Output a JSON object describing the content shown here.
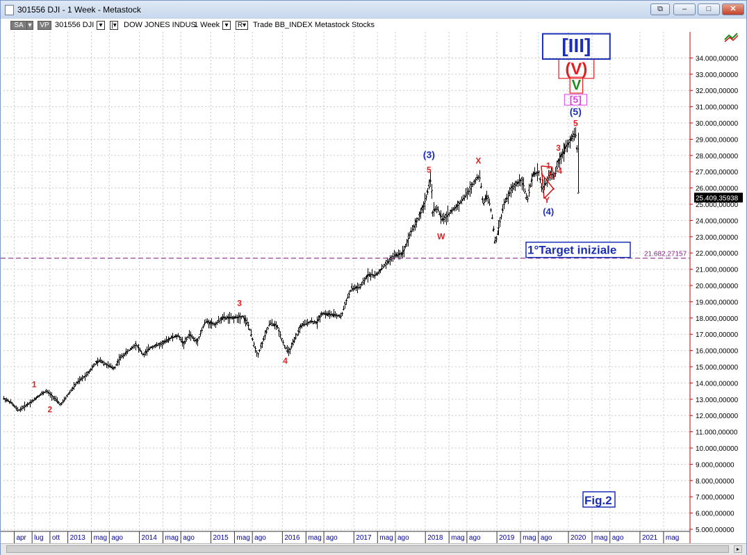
{
  "window": {
    "title": "301556 DJI - 1 Week - Metastock",
    "restore_glyph": "⧉",
    "minimize_glyph": "–",
    "maximize_glyph": "□",
    "close_glyph": "✕"
  },
  "toolbar": {
    "chip_sa": "SA",
    "chip_vp": "VP",
    "symbol": "301556 DJI",
    "name": "DOW JONES INDUS",
    "period": "1 Week",
    "rest": "Trade  BB_INDEX  Metastock  Stocks",
    "chip_r": "R"
  },
  "chart_data": {
    "type": "bar",
    "subtype": "weekly OHLC price bars",
    "y_range": [
      5000,
      35600
    ],
    "y_ticks": [
      "34.000,00000",
      "33.000,00000",
      "32.000,00000",
      "31.000,00000",
      "30.000,00000",
      "29.000,00000",
      "28.000,00000",
      "27.000,00000",
      "26.000,00000",
      "25.000,00000",
      "24.000,00000",
      "23.000,00000",
      "22.000,00000",
      "21.000,00000",
      "20.000,00000",
      "19.000,00000",
      "18.000,00000",
      "17.000,00000",
      "16.000,00000",
      "15.000,00000",
      "14.000,00000",
      "13.000,00000",
      "12.000,00000",
      "11.000,00000",
      "10.000,00000",
      "9.000,00000",
      "8.000,00000",
      "7.000,00000",
      "6.000,00000",
      "5.000,00000"
    ],
    "y_tick_values": [
      34000,
      33000,
      32000,
      31000,
      30000,
      29000,
      28000,
      27000,
      26000,
      25000,
      24000,
      23000,
      22000,
      21000,
      20000,
      19000,
      18000,
      17000,
      16000,
      15000,
      14000,
      13000,
      12000,
      11000,
      10000,
      9000,
      8000,
      7000,
      6000,
      5000
    ],
    "x_labels": [
      {
        "t": 2012.25,
        "text": "apr"
      },
      {
        "t": 2012.5,
        "text": "lug"
      },
      {
        "t": 2012.75,
        "text": "ott"
      },
      {
        "t": 2013.0,
        "text": "2013"
      },
      {
        "t": 2013.33,
        "text": "mag"
      },
      {
        "t": 2013.58,
        "text": "ago"
      },
      {
        "t": 2014.0,
        "text": "2014"
      },
      {
        "t": 2014.33,
        "text": "mag"
      },
      {
        "t": 2014.58,
        "text": "ago"
      },
      {
        "t": 2015.0,
        "text": "2015"
      },
      {
        "t": 2015.33,
        "text": "mag"
      },
      {
        "t": 2015.58,
        "text": "ago"
      },
      {
        "t": 2016.0,
        "text": "2016"
      },
      {
        "t": 2016.33,
        "text": "mag"
      },
      {
        "t": 2016.58,
        "text": "ago"
      },
      {
        "t": 2017.0,
        "text": "2017"
      },
      {
        "t": 2017.33,
        "text": "mag"
      },
      {
        "t": 2017.58,
        "text": "ago"
      },
      {
        "t": 2018.0,
        "text": "2018"
      },
      {
        "t": 2018.33,
        "text": "mag"
      },
      {
        "t": 2018.58,
        "text": "ago"
      },
      {
        "t": 2019.0,
        "text": "2019"
      },
      {
        "t": 2019.33,
        "text": "mag"
      },
      {
        "t": 2019.58,
        "text": "ago"
      },
      {
        "t": 2020.0,
        "text": "2020"
      },
      {
        "t": 2020.33,
        "text": "mag"
      },
      {
        "t": 2020.58,
        "text": "ago"
      },
      {
        "t": 2021.0,
        "text": "2021"
      },
      {
        "t": 2021.33,
        "text": "mag"
      }
    ],
    "x_range": [
      2012.1,
      2021.7
    ],
    "price_path": [
      [
        2012.1,
        13050
      ],
      [
        2012.2,
        12800
      ],
      [
        2012.3,
        12300
      ],
      [
        2012.4,
        12600
      ],
      [
        2012.5,
        12900
      ],
      [
        2012.62,
        13300
      ],
      [
        2012.7,
        13500
      ],
      [
        2012.78,
        13200
      ],
      [
        2012.9,
        12650
      ],
      [
        2013.0,
        13300
      ],
      [
        2013.12,
        14000
      ],
      [
        2013.25,
        14500
      ],
      [
        2013.38,
        15200
      ],
      [
        2013.45,
        15400
      ],
      [
        2013.55,
        15100
      ],
      [
        2013.65,
        14900
      ],
      [
        2013.72,
        15500
      ],
      [
        2013.85,
        16000
      ],
      [
        2013.95,
        16400
      ],
      [
        2014.05,
        15700
      ],
      [
        2014.15,
        16200
      ],
      [
        2014.3,
        16400
      ],
      [
        2014.45,
        16800
      ],
      [
        2014.55,
        16900
      ],
      [
        2014.62,
        16400
      ],
      [
        2014.7,
        17000
      ],
      [
        2014.8,
        16500
      ],
      [
        2014.92,
        17800
      ],
      [
        2015.05,
        17600
      ],
      [
        2015.15,
        18000
      ],
      [
        2015.3,
        18000
      ],
      [
        2015.45,
        18100
      ],
      [
        2015.52,
        17600
      ],
      [
        2015.6,
        16400
      ],
      [
        2015.65,
        15700
      ],
      [
        2015.72,
        16500
      ],
      [
        2015.82,
        17700
      ],
      [
        2015.92,
        17500
      ],
      [
        2016.02,
        16300
      ],
      [
        2016.08,
        15900
      ],
      [
        2016.14,
        16400
      ],
      [
        2016.25,
        17500
      ],
      [
        2016.4,
        17800
      ],
      [
        2016.48,
        17700
      ],
      [
        2016.55,
        18300
      ],
      [
        2016.7,
        18200
      ],
      [
        2016.82,
        18100
      ],
      [
        2016.88,
        19000
      ],
      [
        2016.96,
        19800
      ],
      [
        2017.08,
        19900
      ],
      [
        2017.2,
        20700
      ],
      [
        2017.3,
        20600
      ],
      [
        2017.42,
        21200
      ],
      [
        2017.55,
        21800
      ],
      [
        2017.68,
        22000
      ],
      [
        2017.78,
        23200
      ],
      [
        2017.88,
        24000
      ],
      [
        2017.96,
        24800
      ],
      [
        2018.04,
        26000
      ],
      [
        2018.07,
        26600
      ],
      [
        2018.1,
        24500
      ],
      [
        2018.16,
        24800
      ],
      [
        2018.24,
        24000
      ],
      [
        2018.32,
        24400
      ],
      [
        2018.42,
        24800
      ],
      [
        2018.5,
        25200
      ],
      [
        2018.6,
        25800
      ],
      [
        2018.72,
        26700
      ],
      [
        2018.76,
        26600
      ],
      [
        2018.8,
        25000
      ],
      [
        2018.86,
        25600
      ],
      [
        2018.92,
        24400
      ],
      [
        2018.97,
        22600
      ],
      [
        2019.02,
        23500
      ],
      [
        2019.1,
        25000
      ],
      [
        2019.2,
        25900
      ],
      [
        2019.3,
        26400
      ],
      [
        2019.35,
        26500
      ],
      [
        2019.42,
        25200
      ],
      [
        2019.5,
        26800
      ],
      [
        2019.58,
        27000
      ],
      [
        2019.62,
        26000
      ],
      [
        2019.68,
        26300
      ],
      [
        2019.74,
        26900
      ],
      [
        2019.8,
        26700
      ],
      [
        2019.86,
        27700
      ],
      [
        2019.94,
        28400
      ],
      [
        2020.02,
        28900
      ],
      [
        2020.08,
        29300
      ],
      [
        2020.11,
        29200
      ],
      [
        2020.13,
        27500
      ],
      [
        2020.14,
        25409
      ]
    ],
    "last_value": "25.409,35938",
    "target_value": "21.682,27157",
    "target_price": 21682,
    "target_label": "1°Target iniziale",
    "figure_label": "Fig.2",
    "wave_labels": [
      {
        "t": 2012.53,
        "v": 13750,
        "text": "1",
        "color": "#e02020",
        "size": 12,
        "style": "plain"
      },
      {
        "t": 2012.75,
        "v": 12200,
        "text": "2",
        "color": "#e02020",
        "size": 12,
        "style": "plain"
      },
      {
        "t": 2015.4,
        "v": 18750,
        "text": "3",
        "color": "#e02020",
        "size": 12,
        "style": "plain"
      },
      {
        "t": 2016.04,
        "v": 15200,
        "text": "4",
        "color": "#e02020",
        "size": 12,
        "style": "plain"
      },
      {
        "t": 2018.05,
        "v": 27850,
        "text": "(3)",
        "color": "#1b2fb5",
        "size": 14,
        "style": "plain"
      },
      {
        "t": 2018.05,
        "v": 26950,
        "text": "5",
        "color": "#e02020",
        "size": 12,
        "style": "plain"
      },
      {
        "t": 2018.22,
        "v": 22850,
        "text": "W",
        "color": "#e02020",
        "size": 12,
        "style": "plain"
      },
      {
        "t": 2018.74,
        "v": 27500,
        "text": "X",
        "color": "#e02020",
        "size": 12,
        "style": "plain"
      },
      {
        "t": 2019.72,
        "v": 27200,
        "text": "1",
        "color": "#e02020",
        "size": 12,
        "style": "plain"
      },
      {
        "t": 2019.74,
        "v": 26600,
        "text": "2",
        "color": "#e02020",
        "size": 12,
        "style": "plain"
      },
      {
        "t": 2019.86,
        "v": 28300,
        "text": "3",
        "color": "#e02020",
        "size": 12,
        "style": "plain"
      },
      {
        "t": 2019.88,
        "v": 26880,
        "text": "4",
        "color": "#e02020",
        "size": 12,
        "style": "plain"
      },
      {
        "t": 2019.7,
        "v": 25080,
        "text": "Y",
        "color": "#e02020",
        "size": 12,
        "style": "plain"
      },
      {
        "t": 2019.72,
        "v": 24350,
        "text": "(4)",
        "color": "#1b2fb5",
        "size": 13,
        "style": "plain"
      },
      {
        "t": 2020.1,
        "v": 29800,
        "text": "5",
        "color": "#e02020",
        "size": 12,
        "style": "plain"
      },
      {
        "t": 2020.1,
        "v": 30500,
        "text": "(5)",
        "color": "#1b2fb5",
        "size": 14,
        "style": "plain"
      },
      {
        "t": 2020.1,
        "v": 31250,
        "text": "[5]",
        "color": "#e040e0",
        "size": 14,
        "style": "box-magenta"
      },
      {
        "t": 2020.11,
        "v": 32050,
        "text": "V",
        "color": "#1a8a1a",
        "size": 20,
        "style": "box-red"
      },
      {
        "t": 2020.11,
        "v": 33000,
        "text": "(V)",
        "color": "#e02020",
        "size": 24,
        "style": "box-red"
      },
      {
        "t": 2020.11,
        "v": 34350,
        "text": "[III]",
        "color": "#1b2fb5",
        "size": 28,
        "style": "box-blue"
      }
    ],
    "triangle_lines": [
      [
        [
          2019.62,
          27350
        ],
        [
          2019.77,
          27300
        ]
      ],
      [
        [
          2019.62,
          27350
        ],
        [
          2019.66,
          25350
        ]
      ],
      [
        [
          2019.66,
          25350
        ],
        [
          2019.8,
          26000
        ]
      ],
      [
        [
          2019.62,
          26900
        ],
        [
          2019.8,
          25900
        ]
      ],
      [
        [
          2019.77,
          27300
        ],
        [
          2019.8,
          26500
        ]
      ]
    ],
    "colors": {
      "bars": "#000000",
      "grid": "#c8c8c8",
      "target_line": "#8a2a8a",
      "target_text": "#8a2a8a",
      "axis_text": "#000000",
      "x_axis_text": "#0000a0",
      "axis_line": "#c00000",
      "label_box": "#1b2fb5"
    }
  }
}
